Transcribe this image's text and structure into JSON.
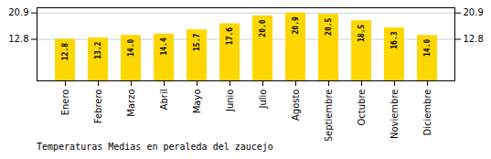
{
  "chart_data": {
    "type": "bar",
    "title": "Temperaturas Medias en peraleda del zaucejo",
    "categories": [
      "Enero",
      "Febrero",
      "Marzo",
      "Abril",
      "Mayo",
      "Junio",
      "Julio",
      "Agosto",
      "Septiembre",
      "Octubre",
      "Noviembre",
      "Diciembre"
    ],
    "values": [
      12.8,
      13.2,
      14.0,
      14.4,
      15.7,
      17.6,
      20.0,
      20.9,
      20.5,
      18.5,
      16.3,
      14.0
    ],
    "value_labels": [
      "12.8",
      "13.2",
      "14.0",
      "14.4",
      "15.7",
      "17.6",
      "20.0",
      "20.9",
      "20.5",
      "18.5",
      "16.3",
      "14.0"
    ],
    "color": "#FFD700",
    "ylim": [
      0,
      22.5
    ],
    "yticks": [
      12.8,
      20.9
    ],
    "grid": true,
    "data_labels": true
  }
}
